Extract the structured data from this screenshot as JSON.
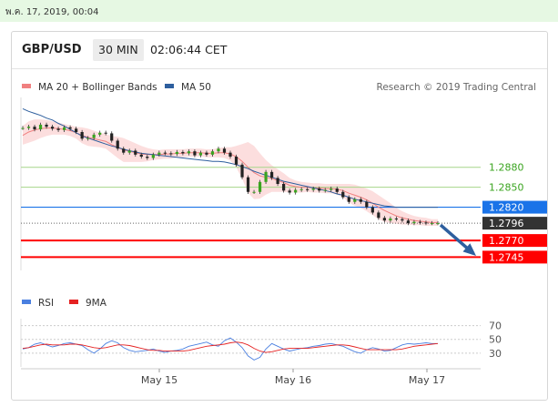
{
  "date_bar": {
    "text": "พ.ค. 17, 2019, 00:04"
  },
  "header": {
    "symbol": "GBP/USD",
    "timeframe": "30 MIN",
    "time": "02:06:44 CET"
  },
  "legend": {
    "ma20": {
      "label": "MA 20 + Bollinger Bands",
      "color": "#f08080"
    },
    "ma50": {
      "label": "MA 50",
      "color": "#2e5f9e"
    },
    "credit": "Research © 2019 Trading Central"
  },
  "chart_data": {
    "type": "line",
    "x_ticks": [
      "May 15",
      "May 16",
      "May 17"
    ],
    "price_levels": [
      {
        "value": 1.288,
        "label": "1.2880",
        "kind": "resistance",
        "color": "#a6d68a",
        "text_color": "#3aa41f"
      },
      {
        "value": 1.285,
        "label": "1.2850",
        "kind": "resistance",
        "color": "#a6d68a",
        "text_color": "#3aa41f"
      },
      {
        "value": 1.282,
        "label": "1.2820",
        "kind": "pivot",
        "color": "#1a73e8",
        "text_color": "#ffffff"
      },
      {
        "value": 1.2796,
        "label": "1.2796",
        "kind": "last",
        "color": "#333333",
        "text_color": "#ffffff"
      },
      {
        "value": 1.277,
        "label": "1.2770",
        "kind": "support",
        "color": "#ff0000",
        "text_color": "#ffffff"
      },
      {
        "value": 1.2745,
        "label": "1.2745",
        "kind": "support",
        "color": "#ff0000",
        "text_color": "#ffffff"
      }
    ],
    "price_range": [
      1.2725,
      1.2985
    ],
    "price_series": [
      1.2939,
      1.2941,
      1.2937,
      1.2944,
      1.2941,
      1.2938,
      1.2936,
      1.294,
      1.2938,
      1.2933,
      1.2923,
      1.2924,
      1.2929,
      1.2932,
      1.2931,
      1.292,
      1.2908,
      1.2902,
      1.2905,
      1.2899,
      1.2896,
      1.2894,
      1.2899,
      1.2902,
      1.2901,
      1.29,
      1.2903,
      1.2901,
      1.2904,
      1.2898,
      1.2902,
      1.2899,
      1.2904,
      1.2908,
      1.2902,
      1.2896,
      1.2884,
      1.2865,
      1.2843,
      1.2843,
      1.2858,
      1.2873,
      1.2864,
      1.2855,
      1.2845,
      1.2842,
      1.2846,
      1.2847,
      1.2846,
      1.2848,
      1.2845,
      1.2846,
      1.2848,
      1.2843,
      1.2835,
      1.2828,
      1.2832,
      1.2828,
      1.282,
      1.2812,
      1.2804,
      1.28,
      1.2803,
      1.2802,
      1.28,
      1.2796,
      1.2798,
      1.2797,
      1.2796,
      1.2796,
      1.2796
    ],
    "ma50_series": [
      1.2968,
      1.2964,
      1.2961,
      1.2958,
      1.2954,
      1.2951,
      1.2946,
      1.2942,
      1.2937,
      1.2932,
      1.2927,
      1.2924,
      1.2921,
      1.2918,
      1.2915,
      1.2912,
      1.291,
      1.2907,
      1.2905,
      1.2903,
      1.2901,
      1.29,
      1.2899,
      1.2898,
      1.2897,
      1.2896,
      1.2895,
      1.2894,
      1.2893,
      1.2892,
      1.2891,
      1.289,
      1.2889,
      1.2889,
      1.2888,
      1.2886,
      1.2884,
      1.2881,
      1.2878,
      1.2874,
      1.2871,
      1.2868,
      1.2865,
      1.2862,
      1.2859,
      1.2857,
      1.2855,
      1.2853,
      1.2851,
      1.2849,
      1.2847,
      1.2845,
      1.2843,
      1.284,
      1.2838,
      1.2835,
      1.2832,
      1.283,
      1.2828,
      1.2826,
      1.2824,
      1.2822,
      1.2821,
      1.282,
      1.282,
      1.282,
      1.282,
      1.282,
      1.282,
      1.282,
      1.282
    ],
    "ma20_series": [
      1.2928,
      1.2933,
      1.2936,
      1.2938,
      1.2939,
      1.2939,
      1.2938,
      1.2937,
      1.2935,
      1.2932,
      1.2928,
      1.2925,
      1.2923,
      1.2921,
      1.2919,
      1.2914,
      1.291,
      1.2906,
      1.2904,
      1.2902,
      1.29,
      1.2899,
      1.2899,
      1.2899,
      1.29,
      1.29,
      1.2901,
      1.2901,
      1.2902,
      1.2902,
      1.2902,
      1.2901,
      1.2901,
      1.2902,
      1.2902,
      1.29,
      1.2896,
      1.2889,
      1.288,
      1.2872,
      1.2867,
      1.2865,
      1.2863,
      1.286,
      1.2857,
      1.2853,
      1.2851,
      1.285,
      1.285,
      1.2849,
      1.2849,
      1.2848,
      1.2848,
      1.2847,
      1.2845,
      1.2841,
      1.2838,
      1.2835,
      1.2831,
      1.2826,
      1.282,
      1.2815,
      1.2811,
      1.2807,
      1.2804,
      1.2802,
      1.28,
      1.2799,
      1.2798,
      1.2797,
      1.2797
    ],
    "bb_width": [
      0.0014,
      0.0016,
      0.0016,
      0.0014,
      0.0012,
      0.001,
      0.0009,
      0.0008,
      0.0008,
      0.0009,
      0.0012,
      0.0013,
      0.0012,
      0.0011,
      0.0011,
      0.0013,
      0.0016,
      0.0018,
      0.0016,
      0.0014,
      0.0012,
      0.001,
      0.0008,
      0.0007,
      0.0007,
      0.0007,
      0.0006,
      0.0006,
      0.0006,
      0.0006,
      0.0006,
      0.0006,
      0.0006,
      0.0007,
      0.0008,
      0.001,
      0.0016,
      0.0026,
      0.0038,
      0.004,
      0.0034,
      0.0026,
      0.002,
      0.0017,
      0.0014,
      0.0011,
      0.0009,
      0.0008,
      0.0007,
      0.0007,
      0.0007,
      0.0007,
      0.0007,
      0.0008,
      0.001,
      0.0014,
      0.0016,
      0.0016,
      0.0017,
      0.0018,
      0.0018,
      0.0017,
      0.0015,
      0.0012,
      0.001,
      0.0008,
      0.0007,
      0.0006,
      0.0006,
      0.0005,
      0.0005
    ],
    "projection": {
      "from": 1.2796,
      "to": 1.2745
    },
    "rsi": {
      "legend_rsi": {
        "label": "RSI",
        "color": "#4a7fe0"
      },
      "legend_ma": {
        "label": "9MA",
        "color": "#e52222"
      },
      "levels": [
        70,
        50,
        30
      ],
      "range": [
        10,
        80
      ],
      "rsi_series": [
        36,
        38,
        43,
        45,
        42,
        39,
        41,
        44,
        45,
        43,
        41,
        35,
        30,
        36,
        44,
        48,
        45,
        38,
        34,
        32,
        33,
        34,
        36,
        33,
        31,
        33,
        34,
        36,
        40,
        42,
        44,
        46,
        42,
        40,
        48,
        52,
        46,
        38,
        26,
        20,
        24,
        36,
        44,
        40,
        36,
        33,
        35,
        37,
        38,
        40,
        41,
        43,
        44,
        42,
        40,
        36,
        32,
        30,
        35,
        38,
        36,
        33,
        34,
        38,
        42,
        44,
        43,
        44,
        45,
        44,
        44
      ],
      "ma_series": [
        37,
        38,
        40,
        42,
        43,
        42,
        42,
        42,
        43,
        43,
        42,
        40,
        38,
        37,
        38,
        40,
        42,
        42,
        41,
        39,
        37,
        35,
        34,
        34,
        33,
        33,
        33,
        33,
        34,
        36,
        38,
        40,
        41,
        42,
        43,
        45,
        46,
        45,
        42,
        37,
        33,
        31,
        32,
        34,
        36,
        37,
        37,
        37,
        37,
        38,
        39,
        40,
        41,
        42,
        42,
        41,
        39,
        37,
        35,
        35,
        35,
        35,
        35,
        35,
        36,
        38,
        40,
        41,
        42,
        43,
        44
      ]
    }
  }
}
